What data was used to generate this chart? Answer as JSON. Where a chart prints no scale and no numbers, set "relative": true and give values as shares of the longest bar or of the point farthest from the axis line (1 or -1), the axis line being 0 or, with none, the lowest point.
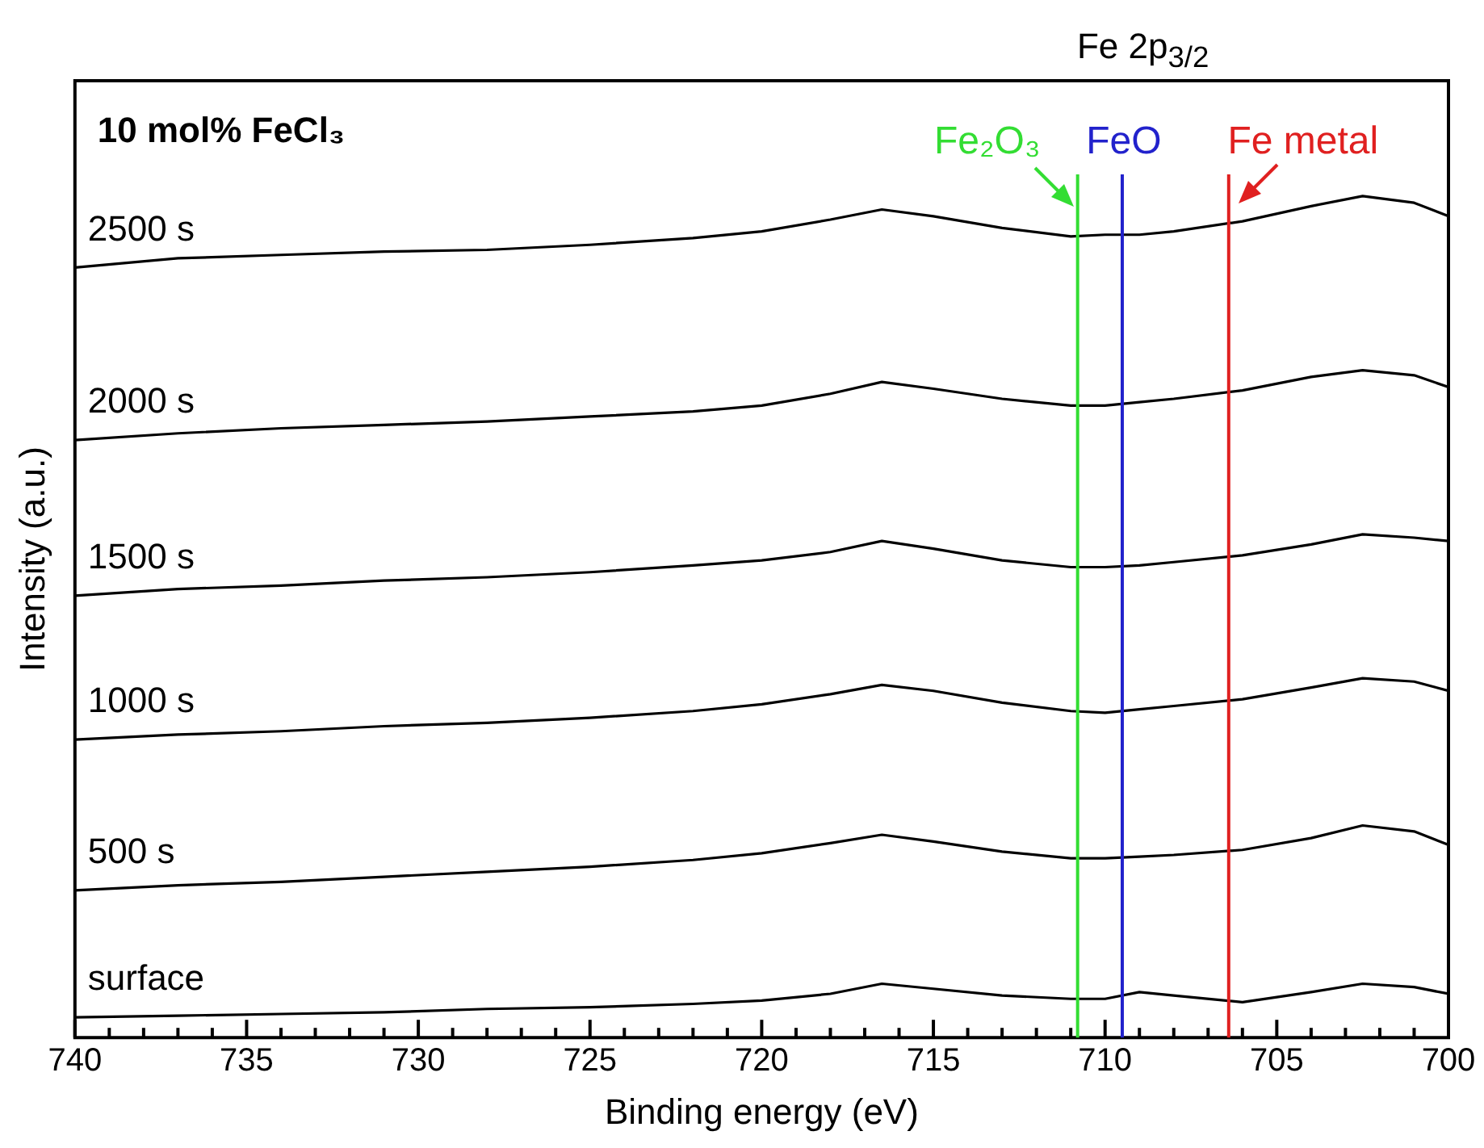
{
  "chart_data": {
    "type": "line",
    "relative": true,
    "xlabel": "Binding energy (eV)",
    "ylabel": "Intensity (a.u.)",
    "xlim": [
      740,
      700
    ],
    "xticks": [
      740,
      {
        "value": 739,
        "label": null
      },
      {
        "value": 738,
        "label": null
      },
      {
        "value": 737,
        "label": null
      },
      {
        "value": 736,
        "label": null
      },
      735,
      {
        "value": 734,
        "label": null
      },
      {
        "value": 733,
        "label": null
      },
      {
        "value": 732,
        "label": null
      },
      {
        "value": 731,
        "label": null
      },
      730,
      {
        "value": 729,
        "label": null
      },
      {
        "value": 728,
        "label": null
      },
      {
        "value": 727,
        "label": null
      },
      {
        "value": 726,
        "label": null
      },
      725,
      {
        "value": 724,
        "label": null
      },
      {
        "value": 723,
        "label": null
      },
      {
        "value": 722,
        "label": null
      },
      {
        "value": 721,
        "label": null
      },
      720,
      {
        "value": 719,
        "label": null
      },
      {
        "value": 718,
        "label": null
      },
      {
        "value": 717,
        "label": null
      },
      {
        "value": 716,
        "label": null
      },
      715,
      {
        "value": 714,
        "label": null
      },
      {
        "value": 713,
        "label": null
      },
      {
        "value": 712,
        "label": null
      },
      {
        "value": 711,
        "label": null
      },
      710,
      {
        "value": 709,
        "label": null
      },
      {
        "value": 708,
        "label": null
      },
      {
        "value": 707,
        "label": null
      },
      {
        "value": 706,
        "label": null
      },
      705,
      {
        "value": 704,
        "label": null
      },
      {
        "value": 703,
        "label": null
      },
      {
        "value": 702,
        "label": null
      },
      {
        "value": 701,
        "label": null
      },
      700
    ],
    "x": [
      740,
      737,
      734,
      731,
      728,
      725,
      722,
      720,
      718,
      716.5,
      715,
      713,
      711,
      710,
      709,
      708,
      706,
      704,
      702.5,
      701,
      700
    ],
    "series": [
      {
        "name": "2500 s",
        "color": "#000000",
        "values": [
          0.915,
          0.926,
          0.93,
          0.934,
          0.936,
          0.942,
          0.95,
          0.958,
          0.972,
          0.984,
          0.976,
          0.962,
          0.952,
          0.954,
          0.954,
          0.958,
          0.97,
          0.988,
          1.0,
          0.992,
          0.976
        ]
      },
      {
        "name": "2000 s",
        "color": "#000000",
        "values": [
          0.71,
          0.718,
          0.724,
          0.728,
          0.732,
          0.738,
          0.744,
          0.751,
          0.765,
          0.779,
          0.771,
          0.759,
          0.751,
          0.751,
          0.755,
          0.759,
          0.769,
          0.785,
          0.793,
          0.787,
          0.773
        ]
      },
      {
        "name": "1500 s",
        "color": "#000000",
        "values": [
          0.525,
          0.533,
          0.537,
          0.543,
          0.547,
          0.553,
          0.561,
          0.567,
          0.577,
          0.59,
          0.581,
          0.567,
          0.559,
          0.559,
          0.561,
          0.565,
          0.573,
          0.586,
          0.598,
          0.594,
          0.59
        ]
      },
      {
        "name": "1000 s",
        "color": "#000000",
        "values": [
          0.354,
          0.36,
          0.364,
          0.37,
          0.374,
          0.38,
          0.388,
          0.396,
          0.408,
          0.419,
          0.412,
          0.398,
          0.388,
          0.386,
          0.39,
          0.394,
          0.402,
          0.416,
          0.427,
          0.423,
          0.412
        ]
      },
      {
        "name": "500 s",
        "color": "#000000",
        "values": [
          0.175,
          0.181,
          0.185,
          0.191,
          0.197,
          0.203,
          0.211,
          0.219,
          0.231,
          0.241,
          0.233,
          0.221,
          0.213,
          0.213,
          0.215,
          0.217,
          0.223,
          0.237,
          0.252,
          0.245,
          0.229
        ]
      },
      {
        "name": "surface",
        "color": "#000000",
        "values": [
          0.024,
          0.026,
          0.028,
          0.03,
          0.034,
          0.036,
          0.04,
          0.044,
          0.052,
          0.064,
          0.058,
          0.05,
          0.046,
          0.046,
          0.054,
          0.05,
          0.042,
          0.054,
          0.064,
          0.06,
          0.052
        ]
      }
    ],
    "ref_lines": [
      {
        "axis": "x",
        "value": 710.8,
        "label": "Fe₂O₃",
        "color": "#33dd33"
      },
      {
        "axis": "x",
        "value": 709.5,
        "label": "FeO",
        "color": "#2222cc"
      },
      {
        "axis": "x",
        "value": 706.4,
        "label": "Fe metal",
        "color": "#e02020"
      }
    ],
    "annotations": [
      "10 mol% FeCl₃",
      "Fe 2p$_{3/2}$"
    ],
    "legend": false,
    "grid": false,
    "marker": "none",
    "line_style": "solid"
  }
}
